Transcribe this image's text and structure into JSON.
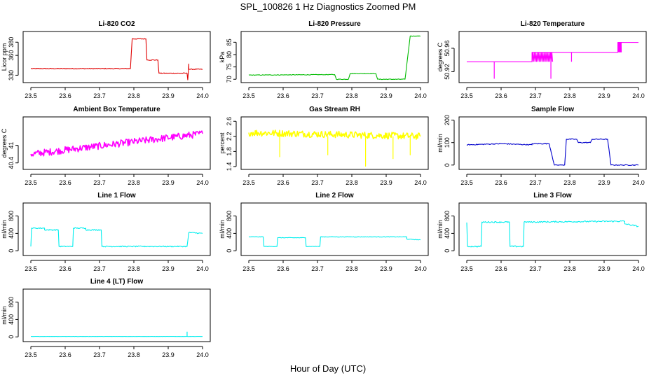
{
  "figure": {
    "title": "SPL_100826  1 Hz Diagnostics Zoomed PM",
    "xlabel": "Hour of Day (UTC)"
  },
  "chart_data": [
    {
      "type": "line",
      "title": "Li-820 CO2",
      "ylabel": "Licor ppm",
      "color": "#e00000",
      "xlim": [
        23.5,
        24.0
      ],
      "ylim": [
        322,
        393
      ],
      "xticks": [
        "23.5",
        "23.6",
        "23.7",
        "23.8",
        "23.9",
        "24.0"
      ],
      "yticks": [
        330,
        360,
        380
      ],
      "noise": 0.6,
      "x": [
        23.5,
        23.985,
        23.985,
        23.985,
        23.985,
        23.985,
        23.985,
        23.985,
        23.985,
        23.985
      ],
      "segments": [
        {
          "x0": 23.5,
          "x1": 23.79,
          "y0": 340,
          "y1": 340
        },
        {
          "x0": 23.79,
          "x1": 23.795,
          "y0": 340,
          "y1": 385
        },
        {
          "x0": 23.795,
          "x1": 23.835,
          "y0": 385,
          "y1": 385
        },
        {
          "x0": 23.835,
          "x1": 23.838,
          "y0": 385,
          "y1": 353
        },
        {
          "x0": 23.838,
          "x1": 23.87,
          "y0": 353,
          "y1": 353
        },
        {
          "x0": 23.87,
          "x1": 23.873,
          "y0": 353,
          "y1": 333
        },
        {
          "x0": 23.873,
          "x1": 23.955,
          "y0": 333,
          "y1": 333
        },
        {
          "x0": 23.955,
          "x1": 23.957,
          "y0": 333,
          "y1": 323
        },
        {
          "x0": 23.957,
          "x1": 23.96,
          "y0": 323,
          "y1": 347
        },
        {
          "x0": 23.96,
          "x1": 24.0,
          "y0": 339,
          "y1": 339
        }
      ]
    },
    {
      "type": "line",
      "title": "Li-820 Pressure",
      "ylabel": "kPa",
      "color": "#00bb00",
      "xlim": [
        23.5,
        24.0
      ],
      "ylim": [
        69.5,
        88.5
      ],
      "xticks": [
        "23.5",
        "23.6",
        "23.7",
        "23.8",
        "23.9",
        "24.0"
      ],
      "yticks": [
        70,
        75,
        80,
        85
      ],
      "noise": 0.12,
      "segments": [
        {
          "x0": 23.5,
          "x1": 23.75,
          "y0": 71.7,
          "y1": 71.9
        },
        {
          "x0": 23.75,
          "x1": 23.755,
          "y0": 71.9,
          "y1": 70.0
        },
        {
          "x0": 23.755,
          "x1": 23.79,
          "y0": 70.0,
          "y1": 70.0
        },
        {
          "x0": 23.79,
          "x1": 23.795,
          "y0": 70.0,
          "y1": 72.3
        },
        {
          "x0": 23.795,
          "x1": 23.87,
          "y0": 72.3,
          "y1": 72.3
        },
        {
          "x0": 23.87,
          "x1": 23.875,
          "y0": 72.3,
          "y1": 70.0
        },
        {
          "x0": 23.875,
          "x1": 23.955,
          "y0": 70.0,
          "y1": 70.0
        },
        {
          "x0": 23.955,
          "x1": 23.97,
          "y0": 70.0,
          "y1": 87.5
        },
        {
          "x0": 23.97,
          "x1": 24.0,
          "y0": 87.5,
          "y1": 87.5
        }
      ]
    },
    {
      "type": "line",
      "title": "Li-820 Temperature",
      "ylabel": "degrees C",
      "color": "#ff00ff",
      "xlim": [
        23.5,
        24.0
      ],
      "ylim": [
        50.905,
        50.985
      ],
      "xticks": [
        "23.5",
        "23.6",
        "23.7",
        "23.8",
        "23.9",
        "24.0"
      ],
      "yticks": [
        50.92,
        50.96
      ],
      "noise": 0,
      "segments": [
        {
          "x0": 23.5,
          "x1": 23.69,
          "y0": 50.937,
          "y1": 50.937
        },
        {
          "x0": 23.69,
          "x1": 23.94,
          "y0": 50.953,
          "y1": 50.953
        },
        {
          "x0": 23.94,
          "x1": 24.0,
          "y0": 50.97,
          "y1": 50.97
        }
      ],
      "spikes": [
        {
          "x": 23.58,
          "y0": 50.937,
          "y1": 50.908
        },
        {
          "x": 23.745,
          "y0": 50.953,
          "y1": 50.908
        },
        {
          "x": 23.805,
          "y0": 50.953,
          "y1": 50.937
        }
      ],
      "bands": [
        {
          "x0": 23.69,
          "x1": 23.75,
          "y0": 50.937,
          "y1": 50.953
        },
        {
          "x0": 23.94,
          "x1": 23.95,
          "y0": 50.953,
          "y1": 50.97
        }
      ]
    },
    {
      "type": "line",
      "title": "Ambient Box Temperature",
      "ylabel": "degrees C",
      "color": "#ff00ff",
      "xlim": [
        23.5,
        24.0
      ],
      "ylim": [
        40.25,
        41.9
      ],
      "xticks": [
        "23.5",
        "23.6",
        "23.7",
        "23.8",
        "23.9",
        "24.0"
      ],
      "yticks": [
        40.4,
        41.0
      ],
      "noise": 0.12,
      "segments": [
        {
          "x0": 23.5,
          "x1": 24.0,
          "y0": 40.7,
          "y1": 41.4
        }
      ]
    },
    {
      "type": "line",
      "title": "Gas Stream RH",
      "ylabel": "percent",
      "color": "#ffff00",
      "xlim": [
        23.5,
        24.0
      ],
      "ylim": [
        1.38,
        2.66
      ],
      "xticks": [
        "23.5",
        "23.6",
        "23.7",
        "23.8",
        "23.9",
        "24.0"
      ],
      "yticks": [
        1.4,
        1.8,
        2.2,
        2.6
      ],
      "noise": 0.09,
      "segments": [
        {
          "x0": 23.5,
          "x1": 24.0,
          "y0": 2.3,
          "y1": 2.2
        }
      ],
      "spikes": [
        {
          "x": 23.59,
          "y0": 2.2,
          "y1": 1.65
        },
        {
          "x": 23.73,
          "y0": 2.2,
          "y1": 1.7
        },
        {
          "x": 23.84,
          "y0": 2.2,
          "y1": 1.4
        },
        {
          "x": 23.92,
          "y0": 2.2,
          "y1": 1.6
        },
        {
          "x": 23.97,
          "y0": 2.2,
          "y1": 1.7
        }
      ]
    },
    {
      "type": "line",
      "title": "Sample Flow",
      "ylabel": "ml/min",
      "color": "#0000cc",
      "xlim": [
        23.5,
        24.0
      ],
      "ylim": [
        -10,
        205
      ],
      "xticks": [
        "23.5",
        "23.6",
        "23.7",
        "23.8",
        "23.9",
        "24.0"
      ],
      "yticks": [
        0,
        100,
        200
      ],
      "noise": 2,
      "segments": [
        {
          "x0": 23.5,
          "x1": 23.6,
          "y0": 90,
          "y1": 95
        },
        {
          "x0": 23.6,
          "x1": 23.69,
          "y0": 95,
          "y1": 90
        },
        {
          "x0": 23.69,
          "x1": 23.74,
          "y0": 95,
          "y1": 95
        },
        {
          "x0": 23.74,
          "x1": 23.755,
          "y0": 95,
          "y1": 0
        },
        {
          "x0": 23.755,
          "x1": 23.785,
          "y0": 0,
          "y1": 0
        },
        {
          "x0": 23.785,
          "x1": 23.79,
          "y0": 0,
          "y1": 115
        },
        {
          "x0": 23.79,
          "x1": 23.82,
          "y0": 115,
          "y1": 115
        },
        {
          "x0": 23.82,
          "x1": 23.825,
          "y0": 115,
          "y1": 100
        },
        {
          "x0": 23.825,
          "x1": 23.86,
          "y0": 100,
          "y1": 100
        },
        {
          "x0": 23.86,
          "x1": 23.865,
          "y0": 100,
          "y1": 115
        },
        {
          "x0": 23.865,
          "x1": 23.91,
          "y0": 115,
          "y1": 115
        },
        {
          "x0": 23.91,
          "x1": 23.92,
          "y0": 115,
          "y1": 0
        },
        {
          "x0": 23.92,
          "x1": 24.0,
          "y0": 0,
          "y1": 0
        }
      ]
    },
    {
      "type": "line",
      "title": "Line 1 Flow",
      "ylabel": "ml/min",
      "color": "#00eeee",
      "xlim": [
        23.5,
        24.0
      ],
      "ylim": [
        -60,
        1050
      ],
      "xticks": [
        "23.5",
        "23.6",
        "23.7",
        "23.8",
        "23.9",
        "24.0"
      ],
      "yticks": [
        0,
        400,
        800
      ],
      "noise": 12,
      "segments": [
        {
          "x0": 23.5,
          "x1": 23.502,
          "y0": 100,
          "y1": 520
        },
        {
          "x0": 23.502,
          "x1": 23.54,
          "y0": 520,
          "y1": 520
        },
        {
          "x0": 23.54,
          "x1": 23.58,
          "y0": 480,
          "y1": 480
        },
        {
          "x0": 23.58,
          "x1": 23.582,
          "y0": 480,
          "y1": 100
        },
        {
          "x0": 23.582,
          "x1": 23.622,
          "y0": 100,
          "y1": 100
        },
        {
          "x0": 23.622,
          "x1": 23.624,
          "y0": 100,
          "y1": 520
        },
        {
          "x0": 23.624,
          "x1": 23.66,
          "y0": 520,
          "y1": 520
        },
        {
          "x0": 23.66,
          "x1": 23.705,
          "y0": 480,
          "y1": 480
        },
        {
          "x0": 23.705,
          "x1": 23.707,
          "y0": 480,
          "y1": 100
        },
        {
          "x0": 23.707,
          "x1": 23.955,
          "y0": 100,
          "y1": 100
        },
        {
          "x0": 23.955,
          "x1": 23.96,
          "y0": 100,
          "y1": 420
        },
        {
          "x0": 23.96,
          "x1": 24.0,
          "y0": 420,
          "y1": 400
        }
      ]
    },
    {
      "type": "line",
      "title": "Line 2 Flow",
      "ylabel": "ml/min",
      "color": "#00eeee",
      "xlim": [
        23.5,
        24.0
      ],
      "ylim": [
        -60,
        1050
      ],
      "xticks": [
        "23.5",
        "23.6",
        "23.7",
        "23.8",
        "23.9",
        "24.0"
      ],
      "yticks": [
        0,
        400,
        800
      ],
      "noise": 6,
      "segments": [
        {
          "x0": 23.5,
          "x1": 23.542,
          "y0": 320,
          "y1": 320
        },
        {
          "x0": 23.542,
          "x1": 23.544,
          "y0": 320,
          "y1": 100
        },
        {
          "x0": 23.544,
          "x1": 23.582,
          "y0": 100,
          "y1": 100
        },
        {
          "x0": 23.582,
          "x1": 23.584,
          "y0": 100,
          "y1": 300
        },
        {
          "x0": 23.584,
          "x1": 23.665,
          "y0": 300,
          "y1": 300
        },
        {
          "x0": 23.665,
          "x1": 23.667,
          "y0": 300,
          "y1": 100
        },
        {
          "x0": 23.667,
          "x1": 23.707,
          "y0": 100,
          "y1": 100
        },
        {
          "x0": 23.707,
          "x1": 23.709,
          "y0": 100,
          "y1": 320
        },
        {
          "x0": 23.709,
          "x1": 23.96,
          "y0": 320,
          "y1": 320
        },
        {
          "x0": 23.96,
          "x1": 24.0,
          "y0": 270,
          "y1": 250
        }
      ]
    },
    {
      "type": "line",
      "title": "Line 3 Flow",
      "ylabel": "ml/min",
      "color": "#00eeee",
      "xlim": [
        23.5,
        24.0
      ],
      "ylim": [
        -60,
        1050
      ],
      "xticks": [
        "23.5",
        "23.6",
        "23.7",
        "23.8",
        "23.9",
        "24.0"
      ],
      "yticks": [
        0,
        400,
        800
      ],
      "noise": 15,
      "segments": [
        {
          "x0": 23.5,
          "x1": 23.502,
          "y0": 650,
          "y1": 100
        },
        {
          "x0": 23.502,
          "x1": 23.542,
          "y0": 100,
          "y1": 100
        },
        {
          "x0": 23.542,
          "x1": 23.544,
          "y0": 100,
          "y1": 650
        },
        {
          "x0": 23.544,
          "x1": 23.624,
          "y0": 660,
          "y1": 660
        },
        {
          "x0": 23.624,
          "x1": 23.626,
          "y0": 660,
          "y1": 100
        },
        {
          "x0": 23.626,
          "x1": 23.665,
          "y0": 100,
          "y1": 100
        },
        {
          "x0": 23.665,
          "x1": 23.667,
          "y0": 100,
          "y1": 650
        },
        {
          "x0": 23.667,
          "x1": 23.96,
          "y0": 660,
          "y1": 680
        },
        {
          "x0": 23.96,
          "x1": 24.0,
          "y0": 620,
          "y1": 560
        }
      ]
    },
    {
      "type": "line",
      "title": "Line 4 (LT) Flow",
      "ylabel": "ml/min",
      "color": "#00eeee",
      "xlim": [
        23.5,
        24.0
      ],
      "ylim": [
        -60,
        1050
      ],
      "xticks": [
        "23.5",
        "23.6",
        "23.7",
        "23.8",
        "23.9",
        "24.0"
      ],
      "yticks": [
        0,
        400,
        800
      ],
      "noise": 2,
      "segments": [
        {
          "x0": 23.5,
          "x1": 24.0,
          "y0": 10,
          "y1": 10
        }
      ],
      "spikes": [
        {
          "x": 23.955,
          "y0": 10,
          "y1": 120
        }
      ]
    }
  ]
}
